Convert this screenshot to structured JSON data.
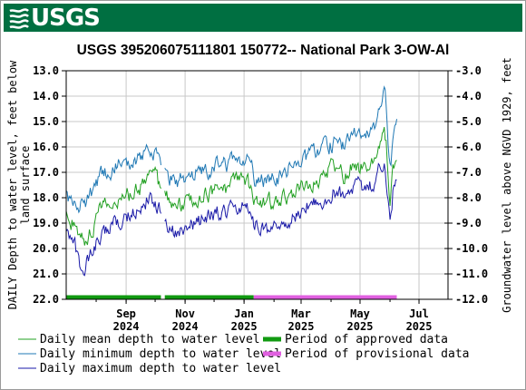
{
  "header": {
    "logo_text": "USGS",
    "logo_icon": "usgs-wave-icon",
    "banner_color": "#006f41"
  },
  "chart_data": {
    "type": "line",
    "title": "USGS 395206075111801 150772-- National Park 3-OW-Al",
    "ylabel": "DAILY Depth to water level, feet below land surface",
    "y2label": "Groundwater level above NGVD 1929, feet",
    "ylim": [
      22.0,
      13.0
    ],
    "y_inverted": true,
    "y_ticks": [
      "13.0",
      "14.0",
      "15.0",
      "16.0",
      "17.0",
      "18.0",
      "19.0",
      "20.0",
      "21.0",
      "22.0"
    ],
    "y2lim": [
      -12.0,
      -3.0
    ],
    "y2_ticks": [
      "-3.0",
      "-4.0",
      "-5.0",
      "-6.0",
      "-7.0",
      "-8.0",
      "-9.0",
      "-10.0",
      "-11.0",
      "-12.0"
    ],
    "xlim": [
      "2024-07-01",
      "2025-07-31"
    ],
    "x_ticks": [
      {
        "date": "2024-09-01",
        "line1": "Sep",
        "line2": "2024"
      },
      {
        "date": "2024-11-01",
        "line1": "Nov",
        "line1b": "",
        "line2": "2024"
      },
      {
        "date": "2025-01-01",
        "line1": "Jan",
        "line2": "2025"
      },
      {
        "date": "2025-03-01",
        "line1": "Mar",
        "line2": "2025"
      },
      {
        "date": "2025-05-01",
        "line1": "May",
        "line2": "2025"
      },
      {
        "date": "2025-07-01",
        "line1": "Jul",
        "line2": "2025"
      }
    ],
    "series": [
      {
        "name": "Daily mean depth to water level",
        "color": "#22a022",
        "segments": [
          {
            "start": "2024-07-01",
            "end": "2024-10-07",
            "anchors": [
              [
                "2024-07-01",
                18.8
              ],
              [
                "2024-07-10",
                19.0
              ],
              [
                "2024-07-20",
                19.7
              ],
              [
                "2024-07-27",
                19.2
              ],
              [
                "2024-08-05",
                18.5
              ],
              [
                "2024-08-15",
                18.3
              ],
              [
                "2024-08-25",
                18.0
              ],
              [
                "2024-09-05",
                17.9
              ],
              [
                "2024-09-15",
                17.6
              ],
              [
                "2024-09-22",
                17.2
              ],
              [
                "2024-09-28",
                17.0
              ],
              [
                "2024-10-03",
                17.3
              ],
              [
                "2024-10-07",
                17.8
              ]
            ]
          },
          {
            "start": "2024-10-11",
            "end": "2025-06-08",
            "anchors": [
              [
                "2024-10-11",
                18.0
              ],
              [
                "2024-10-25",
                18.3
              ],
              [
                "2024-11-10",
                18.0
              ],
              [
                "2024-11-25",
                17.9
              ],
              [
                "2024-12-05",
                17.6
              ],
              [
                "2024-12-15",
                17.7
              ],
              [
                "2024-12-25",
                17.3
              ],
              [
                "2025-01-05",
                17.5
              ],
              [
                "2025-01-12",
                18.1
              ],
              [
                "2025-01-25",
                18.2
              ],
              [
                "2025-02-05",
                18.2
              ],
              [
                "2025-02-15",
                17.9
              ],
              [
                "2025-03-01",
                17.6
              ],
              [
                "2025-03-15",
                17.3
              ],
              [
                "2025-03-28",
                17.0
              ],
              [
                "2025-04-05",
                16.8
              ],
              [
                "2025-04-15",
                17.2
              ],
              [
                "2025-04-25",
                16.6
              ],
              [
                "2025-05-05",
                16.9
              ],
              [
                "2025-05-15",
                16.5
              ],
              [
                "2025-05-22",
                15.9
              ],
              [
                "2025-05-26",
                15.5
              ],
              [
                "2025-05-28",
                16.0
              ],
              [
                "2025-06-01",
                18.2
              ],
              [
                "2025-06-04",
                17.0
              ],
              [
                "2025-06-08",
                16.3
              ]
            ]
          }
        ]
      },
      {
        "name": "Daily minimum depth to water level",
        "color": "#1f78b4",
        "segments": [
          {
            "start": "2024-07-01",
            "end": "2024-10-07",
            "anchors": [
              [
                "2024-07-01",
                18.0
              ],
              [
                "2024-07-10",
                18.3
              ],
              [
                "2024-07-20",
                18.2
              ],
              [
                "2024-07-27",
                17.9
              ],
              [
                "2024-08-05",
                17.2
              ],
              [
                "2024-08-15",
                17.0
              ],
              [
                "2024-08-25",
                16.6
              ],
              [
                "2024-09-05",
                16.5
              ],
              [
                "2024-09-15",
                16.4
              ],
              [
                "2024-09-22",
                16.1
              ],
              [
                "2024-09-28",
                16.2
              ],
              [
                "2024-10-03",
                16.5
              ],
              [
                "2024-10-07",
                17.0
              ]
            ]
          },
          {
            "start": "2024-10-11",
            "end": "2025-06-08",
            "anchors": [
              [
                "2024-10-11",
                17.1
              ],
              [
                "2024-10-25",
                17.3
              ],
              [
                "2024-11-10",
                17.0
              ],
              [
                "2024-11-25",
                16.9
              ],
              [
                "2024-12-05",
                16.6
              ],
              [
                "2024-12-15",
                16.7
              ],
              [
                "2024-12-25",
                16.3
              ],
              [
                "2025-01-05",
                16.5
              ],
              [
                "2025-01-12",
                17.2
              ],
              [
                "2025-01-25",
                17.3
              ],
              [
                "2025-02-05",
                17.2
              ],
              [
                "2025-02-15",
                16.9
              ],
              [
                "2025-03-01",
                16.6
              ],
              [
                "2025-03-15",
                16.2
              ],
              [
                "2025-03-28",
                16.0
              ],
              [
                "2025-04-05",
                15.8
              ],
              [
                "2025-04-15",
                16.0
              ],
              [
                "2025-04-25",
                15.5
              ],
              [
                "2025-05-05",
                15.8
              ],
              [
                "2025-05-15",
                15.3
              ],
              [
                "2025-05-22",
                14.4
              ],
              [
                "2025-05-26",
                13.8
              ],
              [
                "2025-05-28",
                14.3
              ],
              [
                "2025-06-01",
                16.8
              ],
              [
                "2025-06-04",
                16.0
              ],
              [
                "2025-06-08",
                15.1
              ]
            ]
          }
        ]
      },
      {
        "name": "Daily maximum depth to water level",
        "color": "#1a1aa8",
        "segments": [
          {
            "start": "2024-07-01",
            "end": "2024-10-07",
            "anchors": [
              [
                "2024-07-01",
                19.6
              ],
              [
                "2024-07-10",
                20.0
              ],
              [
                "2024-07-18",
                21.1
              ],
              [
                "2024-07-24",
                20.4
              ],
              [
                "2024-08-05",
                19.5
              ],
              [
                "2024-08-15",
                19.1
              ],
              [
                "2024-08-25",
                18.9
              ],
              [
                "2024-09-05",
                18.7
              ],
              [
                "2024-09-15",
                18.5
              ],
              [
                "2024-09-22",
                18.1
              ],
              [
                "2024-09-28",
                18.1
              ],
              [
                "2024-10-03",
                18.4
              ],
              [
                "2024-10-07",
                18.6
              ]
            ]
          },
          {
            "start": "2024-10-11",
            "end": "2025-06-08",
            "anchors": [
              [
                "2024-10-11",
                19.2
              ],
              [
                "2024-10-25",
                19.3
              ],
              [
                "2024-11-10",
                19.0
              ],
              [
                "2024-11-25",
                18.8
              ],
              [
                "2024-12-05",
                18.5
              ],
              [
                "2024-12-15",
                18.7
              ],
              [
                "2024-12-25",
                18.3
              ],
              [
                "2025-01-05",
                18.4
              ],
              [
                "2025-01-12",
                19.0
              ],
              [
                "2025-01-25",
                19.2
              ],
              [
                "2025-02-05",
                19.1
              ],
              [
                "2025-02-15",
                18.8
              ],
              [
                "2025-03-01",
                18.5
              ],
              [
                "2025-03-15",
                18.2
              ],
              [
                "2025-03-28",
                17.9
              ],
              [
                "2025-04-05",
                17.7
              ],
              [
                "2025-04-15",
                18.0
              ],
              [
                "2025-04-25",
                17.5
              ],
              [
                "2025-05-05",
                17.8
              ],
              [
                "2025-05-15",
                17.4
              ],
              [
                "2025-05-22",
                16.7
              ],
              [
                "2025-05-26",
                16.4
              ],
              [
                "2025-05-28",
                17.2
              ],
              [
                "2025-06-01",
                18.9
              ],
              [
                "2025-06-04",
                17.8
              ],
              [
                "2025-06-08",
                17.1
              ]
            ]
          }
        ]
      }
    ],
    "periods": [
      {
        "name": "Period of approved data",
        "color": "#119a11",
        "ranges": [
          [
            "2024-07-01",
            "2024-10-07"
          ],
          [
            "2024-10-11",
            "2025-01-11"
          ]
        ]
      },
      {
        "name": "Period of provisional data",
        "color": "#e060e0",
        "ranges": [
          [
            "2025-01-11",
            "2025-06-08"
          ]
        ]
      }
    ],
    "grid": true,
    "legend_position": "bottom"
  }
}
